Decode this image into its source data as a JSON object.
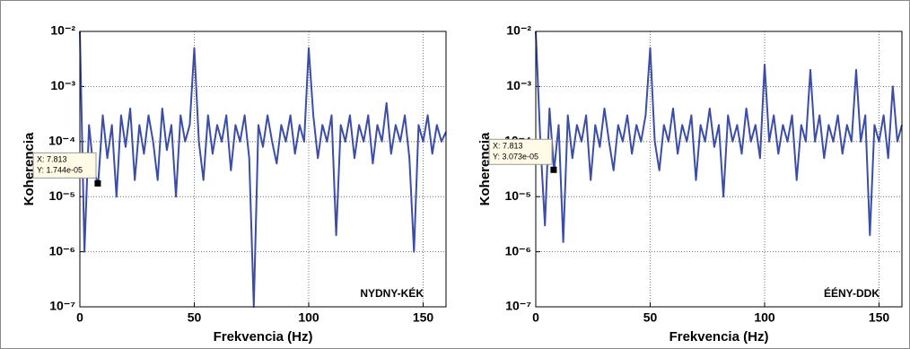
{
  "chart_data": [
    {
      "type": "line",
      "xlabel": "Frekvencia (Hz)",
      "ylabel": "Koherencia",
      "log_y": true,
      "grid": true,
      "xlim": [
        0,
        160
      ],
      "xticks": [
        0,
        50,
        100,
        150
      ],
      "ylim": [
        1e-07,
        0.01
      ],
      "yticks": [
        {
          "value": 1e-07,
          "label": "10⁻⁷"
        },
        {
          "value": 1e-06,
          "label": "10⁻⁶"
        },
        {
          "value": 1e-05,
          "label": "10⁻⁵"
        },
        {
          "value": 0.0001,
          "label": "10⁻⁴"
        },
        {
          "value": 0.001,
          "label": "10⁻³"
        },
        {
          "value": 0.01,
          "label": "10⁻²"
        }
      ],
      "x": [
        0,
        2,
        4,
        6,
        8,
        10,
        12,
        14,
        16,
        18,
        20,
        22,
        24,
        26,
        28,
        30,
        32,
        34,
        36,
        38,
        40,
        42,
        44,
        46,
        48,
        50,
        52,
        54,
        56,
        58,
        60,
        62,
        64,
        66,
        68,
        70,
        72,
        74,
        76,
        78,
        80,
        82,
        84,
        86,
        88,
        90,
        92,
        94,
        96,
        98,
        100,
        102,
        104,
        106,
        108,
        110,
        112,
        114,
        116,
        118,
        120,
        122,
        124,
        126,
        128,
        130,
        132,
        134,
        136,
        138,
        140,
        142,
        144,
        146,
        148,
        150,
        152,
        154,
        156,
        158,
        160
      ],
      "series": [
        {
          "color": "#3b4da6",
          "values": [
            0.01,
            1e-06,
            0.0002,
            3e-05,
            1.7e-05,
            0.0003,
            5e-05,
            0.0002,
            1e-05,
            0.0003,
            8e-05,
            0.0004,
            2e-05,
            0.0002,
            6e-05,
            0.0003,
            0.0001,
            2e-05,
            0.0004,
            7e-05,
            0.0002,
            1e-05,
            0.0003,
            0.0001,
            0.0002,
            0.005,
            0.0001,
            2e-05,
            0.0003,
            6e-05,
            0.0002,
            0.0001,
            0.0003,
            3e-05,
            0.0002,
            0.0001,
            0.0003,
            5e-05,
            1e-07,
            0.0002,
            8e-05,
            0.0003,
            0.0001,
            4e-05,
            0.0002,
            0.0001,
            0.0003,
            6e-05,
            0.0002,
            0.0001,
            0.005,
            0.0003,
            5e-05,
            0.0002,
            0.0001,
            0.0003,
            2e-06,
            0.0002,
            0.0001,
            0.0003,
            5e-05,
            0.0002,
            0.0001,
            0.0003,
            4e-05,
            0.0002,
            0.0001,
            0.0005,
            6e-05,
            0.0002,
            0.0001,
            0.0003,
            5e-05,
            1e-06,
            0.0002,
            0.0001,
            0.0003,
            6e-05,
            0.0002,
            0.0001,
            0.00015
          ]
        }
      ],
      "annotation": "NYDNY-KÉK",
      "datatip": {
        "x": 7.813,
        "y": 1.744e-05,
        "labels": [
          "X: 7.813",
          "Y: 1.744e-05"
        ]
      }
    },
    {
      "type": "line",
      "xlabel": "Frekvencia (Hz)",
      "ylabel": "Koherencia",
      "log_y": true,
      "grid": true,
      "xlim": [
        0,
        160
      ],
      "xticks": [
        0,
        50,
        100,
        150
      ],
      "ylim": [
        1e-07,
        0.01
      ],
      "yticks": [
        {
          "value": 1e-07,
          "label": "10⁻⁷"
        },
        {
          "value": 1e-06,
          "label": "10⁻⁶"
        },
        {
          "value": 1e-05,
          "label": "10⁻⁵"
        },
        {
          "value": 0.0001,
          "label": "10⁻⁴"
        },
        {
          "value": 0.001,
          "label": "10⁻³"
        },
        {
          "value": 0.01,
          "label": "10⁻²"
        }
      ],
      "x": [
        0,
        2,
        4,
        6,
        8,
        10,
        12,
        14,
        16,
        18,
        20,
        22,
        24,
        26,
        28,
        30,
        32,
        34,
        36,
        38,
        40,
        42,
        44,
        46,
        48,
        50,
        52,
        54,
        56,
        58,
        60,
        62,
        64,
        66,
        68,
        70,
        72,
        74,
        76,
        78,
        80,
        82,
        84,
        86,
        88,
        90,
        92,
        94,
        96,
        98,
        100,
        102,
        104,
        106,
        108,
        110,
        112,
        114,
        116,
        118,
        120,
        122,
        124,
        126,
        128,
        130,
        132,
        134,
        136,
        138,
        140,
        142,
        144,
        146,
        148,
        150,
        152,
        154,
        156,
        158,
        160
      ],
      "series": [
        {
          "color": "#3b4da6",
          "values": [
            0.01,
            0.0001,
            3e-06,
            0.0004,
            3e-05,
            0.0002,
            1.5e-06,
            0.0003,
            5e-05,
            0.0002,
            0.0001,
            0.0003,
            2e-05,
            0.0002,
            8e-05,
            0.0004,
            0.0001,
            3e-05,
            0.0002,
            0.0001,
            0.0003,
            6e-05,
            0.0002,
            0.0001,
            0.0003,
            0.005,
            0.0001,
            3e-05,
            0.0002,
            0.0001,
            0.0004,
            6e-05,
            0.0002,
            0.0001,
            0.0003,
            2e-05,
            0.0002,
            0.0001,
            0.0004,
            8e-05,
            0.0002,
            1e-05,
            0.0003,
            0.0001,
            0.0002,
            6e-05,
            0.0004,
            0.0001,
            0.0002,
            5e-05,
            0.0025,
            0.0001,
            0.0003,
            6e-05,
            0.0002,
            0.0001,
            0.0003,
            2e-05,
            0.0002,
            0.0001,
            0.002,
            0.0001,
            0.0003,
            5e-05,
            0.0002,
            0.0001,
            0.0003,
            6e-05,
            0.0002,
            0.0001,
            0.002,
            0.0001,
            0.0003,
            2e-06,
            0.0002,
            0.0001,
            0.0003,
            5e-05,
            0.001,
            0.0001,
            0.0002
          ]
        }
      ],
      "annotation": "ÉÉNY-DDK",
      "datatip": {
        "x": 7.813,
        "y": 3.073e-05,
        "labels": [
          "X: 7.813",
          "Y: 3.073e-05"
        ]
      }
    }
  ]
}
